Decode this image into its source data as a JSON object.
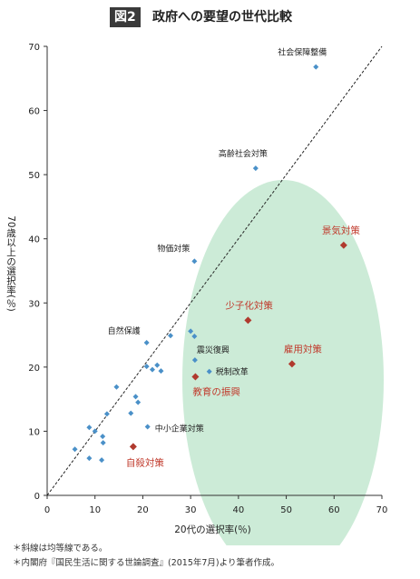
{
  "header": {
    "figure_label": "図2",
    "title": "政府への要望の世代比較"
  },
  "notes": [
    "＊斜線は均等線である。",
    "＊内閣府『国民生活に関する世論調査』(2015年7月)より筆者作成。"
  ],
  "colors": {
    "blue_point": "#4a90c8",
    "red_point": "#b03a2e",
    "ellipse_fill": "#c7e9d3",
    "label_red": "#c0392b"
  },
  "chart_data": {
    "type": "scatter",
    "xlabel": "20代の選択率(％)",
    "ylabel": "70歳以上の選択率(％)",
    "xlim": [
      0,
      70
    ],
    "ylim": [
      0,
      70
    ],
    "xticks": [
      "0",
      "10",
      "20",
      "30",
      "40",
      "50",
      "60",
      "70"
    ],
    "yticks": [
      "0",
      "10",
      "20",
      "30",
      "40",
      "50",
      "60",
      "70"
    ],
    "grid": false,
    "reference_line": "y = x",
    "highlighted": [
      {
        "label": "景気対策",
        "x": 62,
        "y": 39
      },
      {
        "label": "少子化対策",
        "x": 42,
        "y": 27.3
      },
      {
        "label": "雇用対策",
        "x": 51.2,
        "y": 20.5
      },
      {
        "label": "教育の振興",
        "x": 31,
        "y": 18.5
      },
      {
        "label": "自殺対策",
        "x": 18,
        "y": 7.6
      }
    ],
    "labeled_points": [
      {
        "label": "社会保障整備",
        "x": 56.2,
        "y": 66.8
      },
      {
        "label": "高齢社会対策",
        "x": 43.6,
        "y": 51
      },
      {
        "label": "物価対策",
        "x": 30.8,
        "y": 36.5
      },
      {
        "label": "自然保護",
        "x": 20.8,
        "y": 23.8
      },
      {
        "label": "震災復興",
        "x": 30.9,
        "y": 21.1
      },
      {
        "label": "税制改革",
        "x": 33.9,
        "y": 19.3
      },
      {
        "label": "中小企業対策",
        "x": 21,
        "y": 10.7
      }
    ],
    "other_points": [
      {
        "x": 30,
        "y": 25.6
      },
      {
        "x": 30.8,
        "y": 24.8
      },
      {
        "x": 25.8,
        "y": 24.9
      },
      {
        "x": 20.8,
        "y": 20.1
      },
      {
        "x": 22,
        "y": 19.6
      },
      {
        "x": 23,
        "y": 20.3
      },
      {
        "x": 23.8,
        "y": 19.4
      },
      {
        "x": 14.5,
        "y": 16.9
      },
      {
        "x": 18.5,
        "y": 15.4
      },
      {
        "x": 19,
        "y": 14.5
      },
      {
        "x": 17.5,
        "y": 12.8
      },
      {
        "x": 12.5,
        "y": 12.7
      },
      {
        "x": 11.6,
        "y": 9.2
      },
      {
        "x": 11.7,
        "y": 8.2
      },
      {
        "x": 8.8,
        "y": 10.6
      },
      {
        "x": 10,
        "y": 10
      },
      {
        "x": 5.8,
        "y": 7.2
      },
      {
        "x": 8.8,
        "y": 5.8
      },
      {
        "x": 11.4,
        "y": 5.5
      }
    ]
  }
}
